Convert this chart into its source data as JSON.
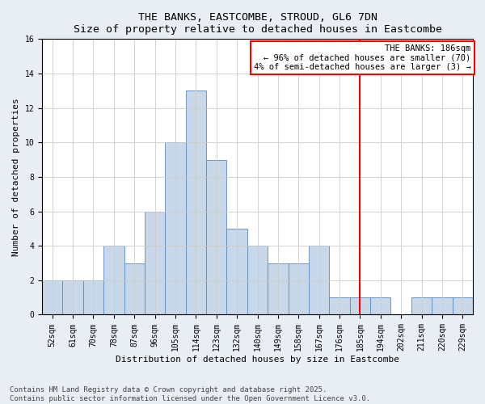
{
  "title1": "THE BANKS, EASTCOMBE, STROUD, GL6 7DN",
  "title2": "Size of property relative to detached houses in Eastcombe",
  "xlabel": "Distribution of detached houses by size in Eastcombe",
  "ylabel": "Number of detached properties",
  "categories": [
    "52sqm",
    "61sqm",
    "70sqm",
    "78sqm",
    "87sqm",
    "96sqm",
    "105sqm",
    "114sqm",
    "123sqm",
    "132sqm",
    "140sqm",
    "149sqm",
    "158sqm",
    "167sqm",
    "176sqm",
    "185sqm",
    "194sqm",
    "202sqm",
    "211sqm",
    "220sqm",
    "229sqm"
  ],
  "values": [
    2,
    2,
    2,
    4,
    3,
    6,
    10,
    13,
    9,
    5,
    4,
    3,
    3,
    4,
    1,
    1,
    1,
    0,
    1,
    1,
    1
  ],
  "bar_color": "#c8d8e8",
  "bar_edge_color": "#5a8abf",
  "vline_x_idx": 15,
  "vline_color": "red",
  "annotation_line1": "THE BANKS: 186sqm",
  "annotation_line2": "← 96% of detached houses are smaller (70)",
  "annotation_line3": "4% of semi-detached houses are larger (3) →",
  "ylim": [
    0,
    16
  ],
  "yticks": [
    0,
    2,
    4,
    6,
    8,
    10,
    12,
    14,
    16
  ],
  "footer1": "Contains HM Land Registry data © Crown copyright and database right 2025.",
  "footer2": "Contains public sector information licensed under the Open Government Licence v3.0.",
  "bg_color": "#e8eef4",
  "plot_bg_color": "#ffffff",
  "grid_color": "#cccccc",
  "title_fontsize": 9.5,
  "tick_fontsize": 7,
  "ylabel_fontsize": 8,
  "xlabel_fontsize": 8,
  "annot_fontsize": 7.5,
  "footer_fontsize": 6.5
}
